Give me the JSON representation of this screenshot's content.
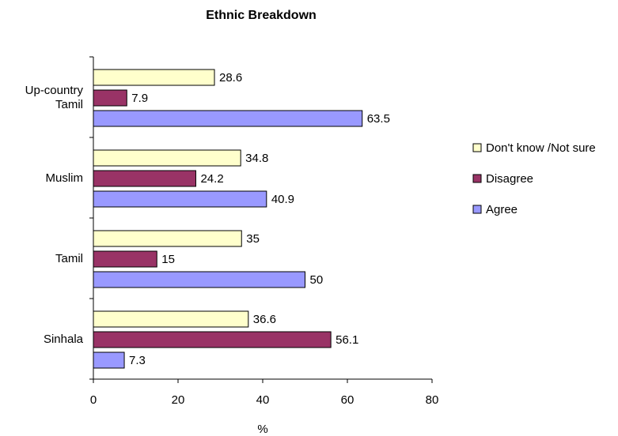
{
  "chart_data": {
    "type": "bar",
    "orientation": "horizontal",
    "title": "Ethnic Breakdown",
    "xlabel": "%",
    "ylabel": "",
    "xlim": [
      0,
      80
    ],
    "x_ticks": [
      0,
      20,
      40,
      60,
      80
    ],
    "grid": false,
    "legend_position": "right",
    "categories": [
      [
        "Up-country",
        "Tamil"
      ],
      [
        "Muslim"
      ],
      [
        "Tamil"
      ],
      [
        "Sinhala"
      ]
    ],
    "series": [
      {
        "name": "Don't know /Not sure",
        "color": "#FFFFCC",
        "values": [
          28.6,
          34.8,
          35,
          36.6
        ],
        "labels": [
          "28.6",
          "34.8",
          "35",
          "36.6"
        ]
      },
      {
        "name": "Disagree",
        "color": "#993366",
        "values": [
          7.9,
          24.2,
          15,
          56.1
        ],
        "labels": [
          "7.9",
          "24.2",
          "15",
          "56.1"
        ]
      },
      {
        "name": "Agree",
        "color": "#9999FF",
        "values": [
          63.5,
          40.9,
          50,
          7.3
        ],
        "labels": [
          "63.5",
          "40.9",
          "50",
          "7.3"
        ]
      }
    ]
  }
}
